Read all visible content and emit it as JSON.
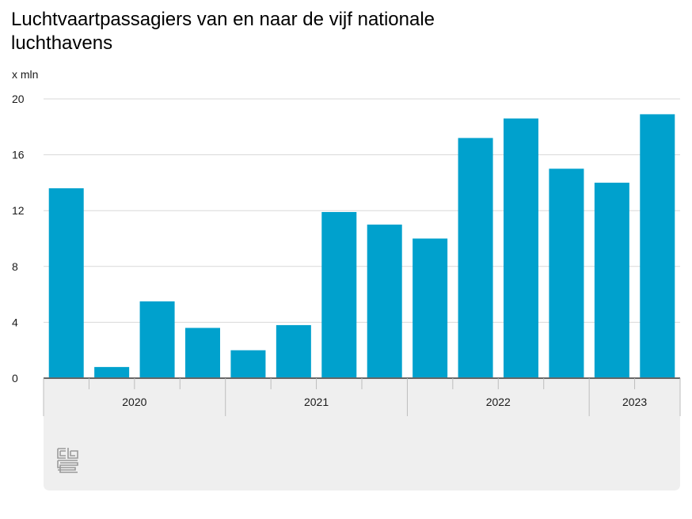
{
  "chart_data": {
    "type": "bar",
    "title_lines": [
      "Luchtvaartpassagiers van en naar de vijf nationale",
      "luchthavens"
    ],
    "unit_label": "x mln",
    "ylim": [
      0,
      20
    ],
    "yticks": [
      "0",
      "4",
      "8",
      "12",
      "16",
      "20"
    ],
    "ytick_values": [
      0,
      4,
      8,
      12,
      16,
      20
    ],
    "grid": true,
    "bar_color": "#00a1cd",
    "years": [
      {
        "label": "2020",
        "quarters": 4
      },
      {
        "label": "2021",
        "quarters": 4
      },
      {
        "label": "2022",
        "quarters": 4
      },
      {
        "label": "2023",
        "quarters": 2
      }
    ],
    "values": [
      13.6,
      0.8,
      5.5,
      3.6,
      2.0,
      3.8,
      11.9,
      11.0,
      10.0,
      17.2,
      18.6,
      15.0,
      14.0,
      18.9
    ]
  },
  "logo": {
    "name": "cbs"
  }
}
